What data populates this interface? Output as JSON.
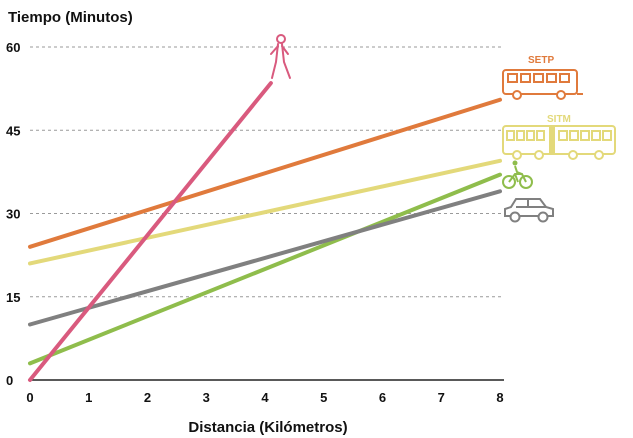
{
  "chart_data": {
    "type": "line",
    "title": "",
    "ylabel": "Tiempo (Minutos)",
    "xlabel": "Distancia (Kilómetros)",
    "xlim": [
      0,
      8
    ],
    "ylim": [
      0,
      60
    ],
    "xticks": [
      "0",
      "1",
      "2",
      "3",
      "4",
      "5",
      "6",
      "7",
      "8"
    ],
    "yticks": [
      "0",
      "15",
      "30",
      "45",
      "60"
    ],
    "grid": "horizontal-dashed",
    "series": [
      {
        "name": "SETP",
        "icon": "bus-icon",
        "color": "#e07a3c",
        "x": [
          0,
          8
        ],
        "y": [
          24,
          50.5
        ]
      },
      {
        "name": "SITM",
        "icon": "articulated-bus-icon",
        "color": "#e3d97a",
        "x": [
          0,
          8
        ],
        "y": [
          21,
          39.5
        ]
      },
      {
        "name": "",
        "icon": "bicycle-icon",
        "color": "#8fbd4c",
        "x": [
          0,
          8
        ],
        "y": [
          3,
          37
        ]
      },
      {
        "name": "",
        "icon": "car-icon",
        "color": "#808080",
        "x": [
          0,
          8
        ],
        "y": [
          10,
          34
        ]
      },
      {
        "name": "",
        "icon": "pedestrian-icon",
        "color": "#d95a7e",
        "x": [
          0,
          4.1
        ],
        "y": [
          0,
          53.5
        ]
      }
    ]
  }
}
